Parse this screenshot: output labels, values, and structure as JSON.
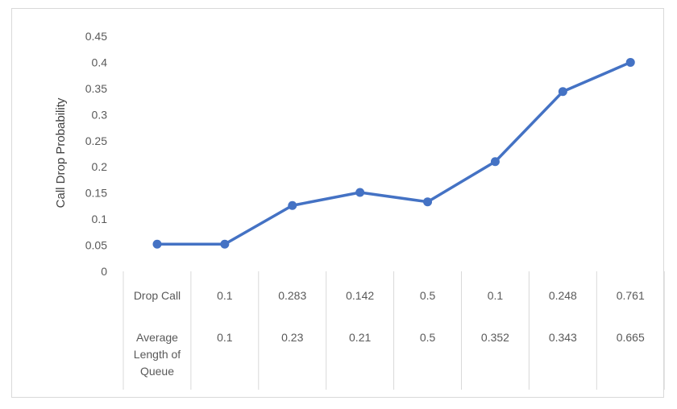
{
  "chart_data": {
    "type": "line",
    "ylabel": "Call Drop Probability",
    "ylim": [
      0,
      0.45
    ],
    "yticks": [
      "0",
      "0.05",
      "0.1",
      "0.15",
      "0.2",
      "0.25",
      "0.3",
      "0.35",
      "0.4",
      "0.45"
    ],
    "grid": false,
    "line_color": "#4472c4",
    "values": [
      0.052,
      0.052,
      0.126,
      0.151,
      0.133,
      0.21,
      0.344,
      0.4
    ],
    "table": {
      "rows": [
        {
          "label": "Drop Call",
          "values": [
            "0.1",
            "0.283",
            "0.142",
            "0.5",
            "0.1",
            "0.248",
            "0.761"
          ]
        },
        {
          "label": "Average Length of Queue",
          "label_lines": [
            "Average",
            "Length of",
            "Queue"
          ],
          "values": [
            "0.1",
            "0.23",
            "0.21",
            "0.5",
            "0.352",
            "0.343",
            "0.665"
          ]
        }
      ]
    }
  }
}
